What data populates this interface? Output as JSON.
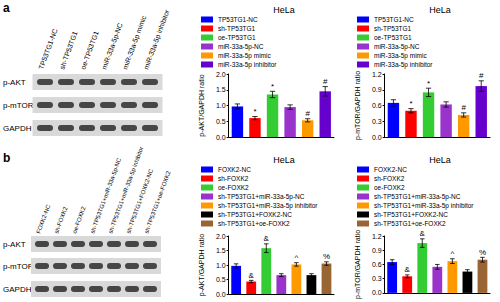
{
  "panels": [
    {
      "label": "a",
      "lanes": [
        "TP53TG1-NC",
        "sh-TP53TG1",
        "oe-TP53TG1",
        "miR-33a-5p-NC",
        "miR-33a-5p mimic",
        "miR-33a-5p inhibitor"
      ],
      "rows": [
        "p-AKT",
        "p-mTOR",
        "GAPDH"
      ]
    },
    {
      "label": "b",
      "lanes": [
        "FOXK2-NC",
        "sh-FOXK2",
        "oe-FOXK2",
        "sh-TP53TG1+miR-33a-5p-NC",
        "sh-TP53TG1+miR-33a-5p inhibitor",
        "sh-TP53TG1+FOXK2-NC",
        "sh-TP53TG1+oe-FOXK2"
      ],
      "rows": [
        "p-AKT",
        "p-mTOR",
        "GAPDH"
      ]
    }
  ],
  "chart_data": [
    {
      "type": "bar",
      "title": "HeLa",
      "y_label": "p-AKT/GAPDH ratio",
      "categories": [
        "TP53TG1-NC",
        "sh-TP53TG1",
        "oe-TP53TG1",
        "miR-33a-5p-NC",
        "miR-33a-5p mimic",
        "miR-33a-5p inhibitor"
      ],
      "values": [
        0.97,
        0.6,
        1.35,
        0.95,
        0.53,
        1.45
      ],
      "errors": [
        0.08,
        0.05,
        0.1,
        0.07,
        0.05,
        0.15
      ],
      "annotations": [
        null,
        "*",
        "*",
        null,
        "#",
        "#"
      ],
      "colors": [
        "#0000ff",
        "#ff0000",
        "#33cc33",
        "#9933cc",
        "#ff9900",
        "#6600cc"
      ],
      "ylim": [
        0,
        2
      ],
      "yticks": [
        {
          "value": 0,
          "label": "0.0"
        },
        0.5,
        {
          "value": 1,
          "label": "1.0"
        },
        1.5,
        {
          "value": 2,
          "label": "2.0"
        }
      ],
      "legend": "top",
      "grid": false,
      "tick_labels": "y"
    },
    {
      "type": "bar",
      "title": "HeLa",
      "y_label": "p-mTOR/GAPDH ratio",
      "categories": [
        "TP53TG1-NC",
        "sh-TP53TG1",
        "oe-TP53TG1",
        "miR-33a-5p-NC",
        "miR-33a-5p mimic",
        "miR-33a-5p inhibitor"
      ],
      "values": [
        0.65,
        0.5,
        0.85,
        0.62,
        0.42,
        0.97
      ],
      "errors": [
        0.06,
        0.04,
        0.08,
        0.05,
        0.04,
        0.1
      ],
      "annotations": [
        null,
        "*",
        "*",
        null,
        "#",
        "#"
      ],
      "colors": [
        "#0000ff",
        "#ff0000",
        "#33cc33",
        "#9933cc",
        "#ff9900",
        "#6600cc"
      ],
      "ylim": [
        0,
        1.2
      ],
      "yticks": [
        {
          "value": 0,
          "label": "0.0"
        },
        0.3,
        0.6,
        0.9,
        1.2
      ],
      "legend": "top",
      "grid": false,
      "tick_labels": "y"
    },
    {
      "type": "bar",
      "title": "HeLa",
      "y_label": "p-AKT/GAPDH ratio",
      "categories": [
        "FOXK2-NC",
        "sh-FOXK2",
        "oe-FOXK2",
        "sh-TP53TG1+miR-33a-5p-NC",
        "sh-TP53TG1+miR-33a-5p inhibitor",
        "sh-TP53TG1+FOXK2-NC",
        "sh-TP53TG1+oe-FOXK2"
      ],
      "values": [
        0.97,
        0.43,
        1.58,
        0.65,
        1.02,
        0.65,
        1.05
      ],
      "errors": [
        0.07,
        0.04,
        0.15,
        0.05,
        0.06,
        0.05,
        0.06
      ],
      "annotations": [
        null,
        "&",
        "&",
        null,
        "^",
        null,
        "%"
      ],
      "colors": [
        "#0000ff",
        "#ff0000",
        "#33cc33",
        "#9933cc",
        "#ff9900",
        "#000000",
        "#996633"
      ],
      "ylim": [
        0,
        2
      ],
      "yticks": [
        {
          "value": 0,
          "label": "0.0"
        },
        0.5,
        {
          "value": 1,
          "label": "1.0"
        },
        1.5,
        {
          "value": 2,
          "label": "2.0"
        }
      ],
      "legend": "top",
      "grid": false,
      "tick_labels": "y"
    },
    {
      "type": "bar",
      "title": "HeLa",
      "y_label": "p-mTOR/GAPDH ratio",
      "categories": [
        "FOXK2-NC",
        "sh-FOXK2",
        "oe-FOXK2",
        "sh-TP53TG1+miR-33a-5p-NC",
        "sh-TP53TG1+miR-33a-5p inhibitor",
        "sh-TP53TG1+FOXK2-NC",
        "sh-TP53TG1+oe-FOXK2"
      ],
      "values": [
        0.65,
        0.35,
        1.05,
        0.55,
        0.67,
        0.45,
        0.7
      ],
      "errors": [
        0.05,
        0.03,
        0.09,
        0.05,
        0.05,
        0.04,
        0.05
      ],
      "annotations": [
        null,
        "&",
        "&",
        null,
        "^",
        null,
        "%"
      ],
      "colors": [
        "#0000ff",
        "#ff0000",
        "#33cc33",
        "#9933cc",
        "#ff9900",
        "#000000",
        "#996633"
      ],
      "ylim": [
        0,
        1.2
      ],
      "yticks": [
        {
          "value": 0,
          "label": "0.0"
        },
        0.3,
        0.6,
        0.9,
        1.2
      ],
      "legend": "top",
      "grid": false,
      "tick_labels": "y"
    }
  ]
}
